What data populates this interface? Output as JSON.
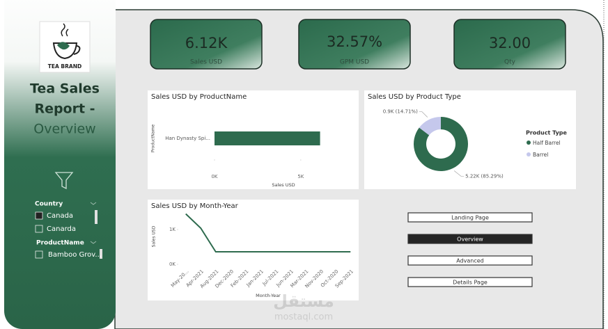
{
  "sidebar": {
    "logo_text": "TEA BRAND",
    "title_lines": [
      "Tea Sales",
      "Report -",
      "Overview"
    ],
    "slicers": [
      {
        "title": "Country",
        "items": [
          {
            "label": "Canada",
            "checked": true
          },
          {
            "label": "Canarda",
            "checked": false
          }
        ]
      },
      {
        "title": "ProductName",
        "items": [
          {
            "label": "Bamboo Grov...",
            "checked": false
          }
        ]
      }
    ]
  },
  "kpis": [
    {
      "value": "6.12K",
      "label": "Sales USD"
    },
    {
      "value": "32.57%",
      "label": "GPM USD"
    },
    {
      "value": "32.00",
      "label": "Qty"
    }
  ],
  "chart_data": [
    {
      "type": "bar",
      "orientation": "horizontal",
      "title": "Sales USD by ProductName",
      "categories": [
        "Han Dynasty Spi..."
      ],
      "values": [
        6120
      ],
      "color": "#2e6b4e",
      "xlim": [
        0,
        6500
      ],
      "xticks": [
        {
          "value": 0,
          "label": "0K"
        },
        {
          "value": 5000,
          "label": "5K"
        }
      ],
      "x_label": "Sales USD",
      "y_label": "ProductName"
    },
    {
      "type": "pie",
      "donut": true,
      "title": "Sales USD by Product Type",
      "categories": [
        "Half Barrel",
        "Barrel"
      ],
      "values": [
        85.29,
        14.71
      ],
      "value_labels": [
        "5.22K (85.29%)",
        "0.9K (14.71%)"
      ],
      "colors": [
        "#2e6b4e",
        "#c5c8ec"
      ],
      "legend_title": "Product Type",
      "legend": "right"
    },
    {
      "type": "line",
      "title": "Sales USD by Month-Year",
      "categories": [
        "May-20...",
        "Apr-2021",
        "Aug-2021",
        "Dec-2020",
        "Feb-2021",
        "Jan-2021",
        "Jul-2021",
        "Jun-2021",
        "Mar-2021",
        "Nov-2020",
        "Oct-2020",
        "Sep-2021"
      ],
      "values": [
        1450,
        1040,
        360,
        360,
        360,
        360,
        360,
        360,
        360,
        360,
        360,
        360
      ],
      "color": "#2e6b4e",
      "ylim": [
        0,
        1600
      ],
      "yticks": [
        {
          "value": 0,
          "label": "0K"
        },
        {
          "value": 1000,
          "label": "1K"
        }
      ],
      "x_label": "Month-Year",
      "y_label": "Sales USD"
    }
  ],
  "buttons": [
    {
      "label": "Landing Page",
      "active": false
    },
    {
      "label": "Overview",
      "active": true
    },
    {
      "label": "Advanced",
      "active": false
    },
    {
      "label": "Details Page",
      "active": false
    }
  ],
  "watermark": {
    "arabic": "مستقل",
    "url": "mostaql.com"
  }
}
